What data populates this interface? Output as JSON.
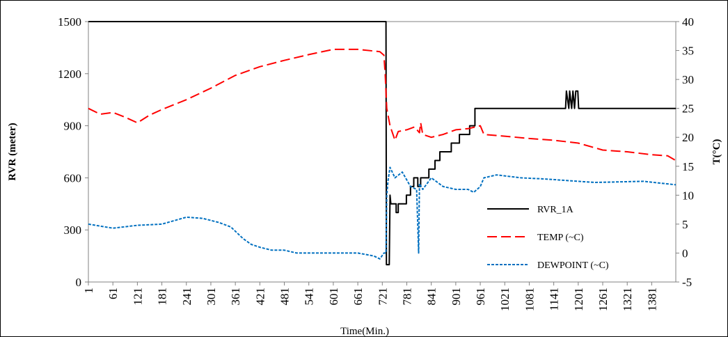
{
  "chart_data": {
    "type": "line",
    "xlabel": "Time(Min.)",
    "ylabel_left": "RVR (meter)",
    "ylabel_right": "T(°C)",
    "y_left_lim": [
      0,
      1500
    ],
    "y_right_lim": [
      -5,
      40
    ],
    "y_left_ticks": [
      0,
      300,
      600,
      900,
      1200,
      1500
    ],
    "y_right_ticks": [
      -5,
      0,
      5,
      10,
      15,
      20,
      25,
      30,
      35,
      40
    ],
    "x_lim": [
      1,
      1440
    ],
    "x_ticks": [
      1,
      61,
      121,
      181,
      241,
      301,
      361,
      421,
      481,
      541,
      601,
      661,
      721,
      781,
      841,
      901,
      961,
      1021,
      1081,
      1141,
      1201,
      1261,
      1321,
      1381
    ],
    "grid": false,
    "legend_position": "right",
    "series": [
      {
        "name": "RVR_1A",
        "axis": "left",
        "color": "#000000",
        "style": "solid",
        "points": [
          [
            1,
            1500
          ],
          [
            730,
            1500
          ],
          [
            731,
            100
          ],
          [
            738,
            100
          ],
          [
            740,
            500
          ],
          [
            742,
            450
          ],
          [
            755,
            450
          ],
          [
            755,
            400
          ],
          [
            760,
            400
          ],
          [
            760,
            450
          ],
          [
            780,
            450
          ],
          [
            780,
            500
          ],
          [
            790,
            500
          ],
          [
            790,
            550
          ],
          [
            798,
            550
          ],
          [
            798,
            600
          ],
          [
            808,
            600
          ],
          [
            808,
            550
          ],
          [
            815,
            550
          ],
          [
            815,
            600
          ],
          [
            835,
            600
          ],
          [
            835,
            650
          ],
          [
            850,
            650
          ],
          [
            850,
            700
          ],
          [
            862,
            700
          ],
          [
            862,
            750
          ],
          [
            890,
            750
          ],
          [
            890,
            800
          ],
          [
            910,
            800
          ],
          [
            910,
            850
          ],
          [
            935,
            850
          ],
          [
            935,
            900
          ],
          [
            948,
            900
          ],
          [
            948,
            1000
          ],
          [
            1170,
            1000
          ],
          [
            1172,
            1100
          ],
          [
            1178,
            1000
          ],
          [
            1180,
            1100
          ],
          [
            1185,
            1000
          ],
          [
            1188,
            1100
          ],
          [
            1192,
            1000
          ],
          [
            1195,
            1100
          ],
          [
            1200,
            1100
          ],
          [
            1202,
            1000
          ],
          [
            1440,
            1000
          ]
        ]
      },
      {
        "name": "TEMP (~C)",
        "axis": "right",
        "color": "#ff0000",
        "style": "dashed",
        "points": [
          [
            1,
            25
          ],
          [
            30,
            24
          ],
          [
            61,
            24.3
          ],
          [
            90,
            23.5
          ],
          [
            121,
            22.5
          ],
          [
            150,
            23.8
          ],
          [
            181,
            24.8
          ],
          [
            241,
            26.5
          ],
          [
            301,
            28.5
          ],
          [
            361,
            30.7
          ],
          [
            421,
            32.2
          ],
          [
            481,
            33.3
          ],
          [
            541,
            34.3
          ],
          [
            601,
            35.2
          ],
          [
            661,
            35.2
          ],
          [
            715,
            34.8
          ],
          [
            725,
            34.2
          ],
          [
            728,
            31
          ],
          [
            732,
            25
          ],
          [
            740,
            22
          ],
          [
            752,
            19.5
          ],
          [
            760,
            21
          ],
          [
            781,
            21.3
          ],
          [
            800,
            21.8
          ],
          [
            812,
            20.8
          ],
          [
            815,
            22.5
          ],
          [
            820,
            20.5
          ],
          [
            841,
            20
          ],
          [
            870,
            20.5
          ],
          [
            901,
            21.3
          ],
          [
            931,
            21.5
          ],
          [
            961,
            22
          ],
          [
            970,
            20.5
          ],
          [
            1021,
            20.2
          ],
          [
            1081,
            19.8
          ],
          [
            1141,
            19.5
          ],
          [
            1201,
            19
          ],
          [
            1261,
            17.8
          ],
          [
            1321,
            17.5
          ],
          [
            1381,
            17
          ],
          [
            1420,
            16.8
          ],
          [
            1440,
            16
          ]
        ]
      },
      {
        "name": "DEWPOINT (~C)",
        "axis": "right",
        "color": "#0070c0",
        "style": "dotted",
        "points": [
          [
            1,
            5
          ],
          [
            61,
            4.3
          ],
          [
            121,
            4.8
          ],
          [
            181,
            5
          ],
          [
            211,
            5.6
          ],
          [
            241,
            6.2
          ],
          [
            281,
            6
          ],
          [
            320,
            5.3
          ],
          [
            350,
            4.5
          ],
          [
            380,
            2.5
          ],
          [
            400,
            1.5
          ],
          [
            421,
            1
          ],
          [
            450,
            0.5
          ],
          [
            481,
            0.5
          ],
          [
            511,
            0
          ],
          [
            541,
            0
          ],
          [
            601,
            0
          ],
          [
            661,
            0
          ],
          [
            700,
            -0.5
          ],
          [
            715,
            -1
          ],
          [
            725,
            0
          ],
          [
            730,
            0
          ],
          [
            732,
            10
          ],
          [
            735,
            12.5
          ],
          [
            740,
            14.8
          ],
          [
            752,
            13
          ],
          [
            770,
            14
          ],
          [
            790,
            11.5
          ],
          [
            805,
            11
          ],
          [
            810,
            0
          ],
          [
            812,
            12
          ],
          [
            820,
            11
          ],
          [
            841,
            13
          ],
          [
            870,
            11.5
          ],
          [
            901,
            11
          ],
          [
            931,
            11
          ],
          [
            945,
            10.5
          ],
          [
            961,
            11.5
          ],
          [
            970,
            13
          ],
          [
            1001,
            13.5
          ],
          [
            1061,
            13
          ],
          [
            1121,
            12.8
          ],
          [
            1181,
            12.5
          ],
          [
            1241,
            12.2
          ],
          [
            1301,
            12.3
          ],
          [
            1361,
            12.4
          ],
          [
            1440,
            11.8
          ]
        ]
      }
    ]
  }
}
